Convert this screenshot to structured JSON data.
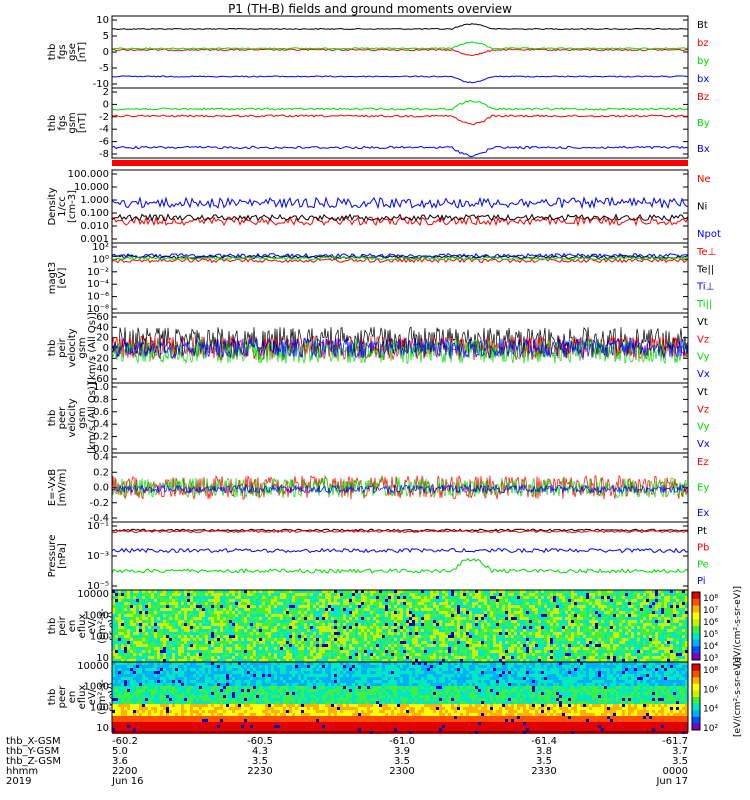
{
  "title": "P1 (TH-B) fields and ground moments overview",
  "colors": {
    "black": "#000000",
    "red": "#ff0000",
    "green": "#00dd00",
    "blue": "#0000ff",
    "frame": "#000000"
  },
  "chart_data": [
    {
      "type": "line",
      "panel": "fgs-gse",
      "ylabel_lines": [
        "thb",
        "fgs",
        "gse",
        "[nT]"
      ],
      "yticks": [
        "10",
        "5",
        "0",
        "-5",
        "-10"
      ],
      "ylim": [
        -10,
        10
      ],
      "series": [
        {
          "name": "Bt",
          "color": "black",
          "level": 8
        },
        {
          "name": "bz",
          "color": "red",
          "level": 0
        },
        {
          "name": "by",
          "color": "green",
          "level": 0.5
        },
        {
          "name": "bx",
          "color": "blue",
          "level": -7
        }
      ]
    },
    {
      "type": "line",
      "panel": "fgs-gsm",
      "ylabel_lines": [
        "thb",
        "fgs",
        "gsm",
        "[nT]"
      ],
      "yticks": [
        "2",
        "0",
        "-2",
        "-4",
        "-6",
        "-8"
      ],
      "ylim": [
        -9,
        3
      ],
      "series": [
        {
          "name": "Bz",
          "color": "red",
          "level": -0.5
        },
        {
          "name": "By",
          "color": "green",
          "level": 0.5
        },
        {
          "name": "Bx",
          "color": "blue",
          "level": -6.5
        }
      ]
    },
    {
      "type": "line",
      "panel": "density",
      "ylabel_lines": [
        "Density",
        "1/cc",
        "[cm-3]"
      ],
      "yticks": [
        "100.000",
        "10.000",
        "1.000",
        "0.100",
        "0.010",
        "0.001"
      ],
      "log": true,
      "series": [
        {
          "name": "Ne",
          "color": "red"
        },
        {
          "name": "Ni",
          "color": "black"
        },
        {
          "name": "Npot",
          "color": "blue"
        }
      ]
    },
    {
      "type": "line",
      "panel": "temperature",
      "ylabel_lines": [
        "magt3",
        "[eV]"
      ],
      "yticks": [
        "10²",
        "10⁰",
        "10⁻²",
        "10⁻⁴",
        "10⁻⁶",
        "10⁻⁸"
      ],
      "log": true,
      "series": [
        {
          "name": "Te⊥",
          "color": "red"
        },
        {
          "name": "Te||",
          "color": "black"
        },
        {
          "name": "Ti⊥",
          "color": "blue"
        },
        {
          "name": "Ti||",
          "color": "green"
        }
      ]
    },
    {
      "type": "line",
      "panel": "peir-velocity",
      "ylabel_lines": [
        "thb",
        "peir",
        "velocity",
        "gsm",
        "[km/s (All Qs)]"
      ],
      "yticks": [
        "60",
        "40",
        "20",
        "0",
        "-20",
        "-40",
        "-60"
      ],
      "ylim": [
        -60,
        60
      ],
      "series": [
        {
          "name": "Vt",
          "color": "black"
        },
        {
          "name": "Vz",
          "color": "red"
        },
        {
          "name": "Vy",
          "color": "green"
        },
        {
          "name": "Vx",
          "color": "blue"
        }
      ]
    },
    {
      "type": "line",
      "panel": "peer-velocity",
      "ylabel_lines": [
        "thb",
        "peer",
        "velocity",
        "gsm",
        "[km/s (All Qs)]"
      ],
      "yticks": [
        "1.0",
        "0.8",
        "0.6",
        "0.4",
        "0.2",
        "0.0"
      ],
      "ylim": [
        0,
        1
      ],
      "series": [
        {
          "name": "Vt",
          "color": "black"
        },
        {
          "name": "Vz",
          "color": "red"
        },
        {
          "name": "Vy",
          "color": "green"
        },
        {
          "name": "Vx",
          "color": "blue"
        }
      ]
    },
    {
      "type": "line",
      "panel": "efield",
      "ylabel_lines": [
        "E=-VxB",
        "[mV/m]"
      ],
      "yticks": [
        "0.4",
        "0.2",
        "0.0",
        "-0.2",
        "-0.4"
      ],
      "ylim": [
        -0.45,
        0.45
      ],
      "series": [
        {
          "name": "Ez",
          "color": "red"
        },
        {
          "name": "Ey",
          "color": "green"
        },
        {
          "name": "Ex",
          "color": "blue"
        }
      ]
    },
    {
      "type": "line",
      "panel": "pressure",
      "ylabel_lines": [
        "Pressure",
        "[nPa]"
      ],
      "yticks": [
        "10⁻¹",
        "10⁻³",
        "10⁻⁵"
      ],
      "log": true,
      "series": [
        {
          "name": "Pt",
          "color": "black"
        },
        {
          "name": "Pb",
          "color": "red"
        },
        {
          "name": "Pe",
          "color": "green"
        },
        {
          "name": "Pi",
          "color": "blue"
        }
      ]
    },
    {
      "type": "heatmap",
      "panel": "peir-eflux",
      "ylabel_lines": [
        "thb",
        "peir",
        "en",
        "eflux",
        "eV/",
        "(cm²-s-",
        "sr-eV)"
      ],
      "yticks": [
        "10000",
        "1000",
        "100",
        "10"
      ],
      "log": true,
      "colorbar": {
        "ticks": [
          "10⁸",
          "10⁷",
          "10⁶",
          "10⁵",
          "10⁴",
          "10³"
        ],
        "label": "[eV/(cm²-s-sr-eV)]"
      }
    },
    {
      "type": "heatmap",
      "panel": "peer-eflux",
      "ylabel_lines": [
        "thb",
        "peer",
        "en",
        "eflux",
        "eV/",
        "(cm²-s-",
        "sr-eV)"
      ],
      "yticks": [
        "10000",
        "1000",
        "100",
        "10"
      ],
      "log": true,
      "colorbar": {
        "ticks": [
          "10⁸",
          "10⁶",
          "10⁴",
          "10²"
        ],
        "label": "[eV/(cm²-s-sr-eV)]"
      }
    }
  ],
  "x_axis": {
    "rows": [
      {
        "label": "thb_X-GSM",
        "values": [
          "-60.2",
          "-60.5",
          "-61.0",
          "-61.4",
          "-61.7"
        ]
      },
      {
        "label": "thb_Y-GSM",
        "values": [
          "5.0",
          "4.3",
          "3.9",
          "3.8",
          "3.7"
        ]
      },
      {
        "label": "thb_Z-GSM",
        "values": [
          "3.6",
          "3.5",
          "3.5",
          "3.5",
          "3.5"
        ]
      },
      {
        "label": "hhmm",
        "values": [
          "2200",
          "2230",
          "2300",
          "2330",
          "0000"
        ]
      },
      {
        "label": "2019",
        "values": [
          "Jun 16",
          "",
          "",
          "",
          "Jun 17"
        ]
      }
    ]
  }
}
